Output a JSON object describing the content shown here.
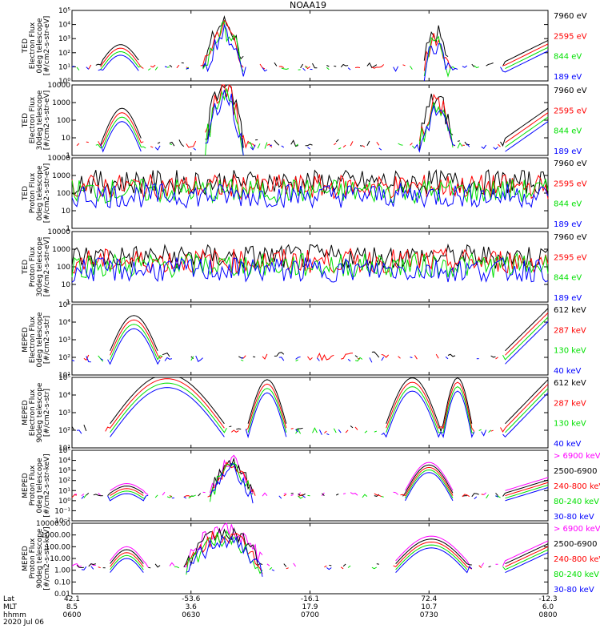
{
  "title": "NOAA19",
  "colors": {
    "black": "#000000",
    "red": "#ff0000",
    "green": "#00e000",
    "blue": "#0000ff",
    "magenta": "#ff00ff"
  },
  "chart_data": [
    {
      "type": "line",
      "panel": "ted-electron-0deg",
      "ylabel": [
        "TED",
        "Electron Flux",
        "0deg telescope",
        "[#/cm2-s-str-eV]"
      ],
      "yticks": [
        "10⁰",
        "10¹",
        "10²",
        "10³",
        "10⁴",
        "10⁵"
      ],
      "ylog": [
        0,
        5
      ],
      "legend": [
        {
          "label": "7960 eV",
          "color": "black"
        },
        {
          "label": "2595 eV",
          "color": "red"
        },
        {
          "label": "844 eV",
          "color": "green"
        },
        {
          "label": "189 eV",
          "color": "blue"
        }
      ],
      "events": [
        {
          "x": [
            6.2,
            14.2
          ],
          "peak": 2.2,
          "kind": "arc"
        },
        {
          "x": [
            28,
            36
          ],
          "peak": 3.7,
          "kind": "spike"
        },
        {
          "x": [
            74,
            79
          ],
          "peak": 3.0,
          "kind": "spike"
        },
        {
          "x": [
            91,
            100
          ],
          "peak": 2.5,
          "kind": "rise"
        }
      ],
      "base": 1.0
    },
    {
      "type": "line",
      "panel": "ted-electron-30deg",
      "ylabel": [
        "TED",
        "Electron Flux",
        "30deg telescope",
        "[#/cm2-s-str-eV]"
      ],
      "yticks": [
        "1",
        "10",
        "100",
        "1000",
        "10000"
      ],
      "ylog": [
        0,
        4
      ],
      "legend": [
        {
          "label": "7960 eV",
          "color": "black"
        },
        {
          "label": "2595 eV",
          "color": "red"
        },
        {
          "label": "844 eV",
          "color": "green"
        },
        {
          "label": "189 eV",
          "color": "blue"
        }
      ],
      "events": [
        {
          "x": [
            6.5,
            14.5
          ],
          "peak": 2.3,
          "kind": "arc"
        },
        {
          "x": [
            28,
            36
          ],
          "peak": 3.8,
          "kind": "spike"
        },
        {
          "x": [
            73,
            80
          ],
          "peak": 2.8,
          "kind": "spike"
        },
        {
          "x": [
            91,
            100
          ],
          "peak": 2.3,
          "kind": "rise"
        }
      ],
      "base": 0.6
    },
    {
      "type": "line",
      "panel": "ted-proton-0deg",
      "ylabel": [
        "TED",
        "Proton Flux",
        "0deg telescope",
        "[#/cm2-s-str-eV]"
      ],
      "yticks": [
        "1",
        "10",
        "100",
        "1000",
        "10000"
      ],
      "ylog": [
        0,
        4
      ],
      "legend": [
        {
          "label": "7960 eV",
          "color": "black"
        },
        {
          "label": "2595 eV",
          "color": "red"
        },
        {
          "label": "844 eV",
          "color": "green"
        },
        {
          "label": "189 eV",
          "color": "blue"
        }
      ],
      "events": [
        {
          "x": [
            0,
            100
          ],
          "peak": 2.3,
          "kind": "band"
        }
      ],
      "base": 2.0
    },
    {
      "type": "line",
      "panel": "ted-proton-30deg",
      "ylabel": [
        "TED",
        "Proton Flux",
        "30deg telescope",
        "[#/cm2-s-str-eV]"
      ],
      "yticks": [
        "1",
        "10",
        "100",
        "1000",
        "10000"
      ],
      "ylog": [
        0,
        4
      ],
      "legend": [
        {
          "label": "7960 eV",
          "color": "black"
        },
        {
          "label": "2595 eV",
          "color": "red"
        },
        {
          "label": "844 eV",
          "color": "green"
        },
        {
          "label": "189 eV",
          "color": "blue"
        }
      ],
      "events": [
        {
          "x": [
            0,
            100
          ],
          "peak": 2.3,
          "kind": "band"
        }
      ],
      "base": 1.8
    },
    {
      "type": "line",
      "panel": "meped-electron-0deg",
      "ylabel": [
        "MEPED",
        "Electron Flux",
        "0deg telescope",
        "[#/cm2-s-str]"
      ],
      "yticks": [
        "10¹",
        "10²",
        "10³",
        "10⁴",
        "10⁵"
      ],
      "ylog": [
        1,
        5
      ],
      "legend": [
        {
          "label": "612 keV",
          "color": "black"
        },
        {
          "label": "287 keV",
          "color": "red"
        },
        {
          "label": "130 keV",
          "color": "green"
        },
        {
          "label": "40 keV",
          "color": "blue"
        }
      ],
      "events": [
        {
          "x": [
            8,
            18
          ],
          "peak": 4.0,
          "kind": "dome"
        },
        {
          "x": [
            91,
            100
          ],
          "peak": 4.4,
          "kind": "rise"
        }
      ],
      "base": 2.0
    },
    {
      "type": "line",
      "panel": "meped-electron-90deg",
      "ylabel": [
        "MEPED",
        "Electron Flux",
        "90deg telescope",
        "[#/cm2-s-str]"
      ],
      "yticks": [
        "10¹",
        "10²",
        "10³",
        "10⁴",
        "10⁵"
      ],
      "ylog": [
        1,
        5
      ],
      "legend": [
        {
          "label": "612 keV",
          "color": "black"
        },
        {
          "label": "287 keV",
          "color": "red"
        },
        {
          "label": "130 keV",
          "color": "green"
        },
        {
          "label": "40 keV",
          "color": "blue"
        }
      ],
      "events": [
        {
          "x": [
            8,
            32
          ],
          "peak": 4.8,
          "kind": "dome"
        },
        {
          "x": [
            37,
            45
          ],
          "peak": 4.5,
          "kind": "dome"
        },
        {
          "x": [
            66,
            77
          ],
          "peak": 4.6,
          "kind": "dome"
        },
        {
          "x": [
            78,
            84
          ],
          "peak": 4.6,
          "kind": "dome"
        },
        {
          "x": [
            91,
            100
          ],
          "peak": 4.5,
          "kind": "rise"
        }
      ],
      "base": 2.0
    },
    {
      "type": "line",
      "panel": "meped-proton-0deg",
      "ylabel": [
        "MEPED",
        "Proton Flux",
        "0deg telescope",
        "[#/cm2-s-str-keV]"
      ],
      "yticks": [
        "10⁻²",
        "10⁻¹",
        "10⁰",
        "10¹",
        "10²",
        "10³",
        "10⁴",
        "10⁵"
      ],
      "ylog": [
        -2,
        5
      ],
      "legend": [
        {
          "label": "> 6900 keV",
          "color": "magenta"
        },
        {
          "label": "2500-6900",
          "color": "black"
        },
        {
          "label": "240-800 keV",
          "color": "red"
        },
        {
          "label": "80-240 keV",
          "color": "green"
        },
        {
          "label": "30-80 keV",
          "color": "blue"
        }
      ],
      "events": [
        {
          "x": [
            8,
            15
          ],
          "peak": 1.2,
          "kind": "dome"
        },
        {
          "x": [
            29,
            38
          ],
          "peak": 3.5,
          "kind": "spike"
        },
        {
          "x": [
            70,
            80
          ],
          "peak": 3.3,
          "kind": "dome"
        },
        {
          "x": [
            91,
            100
          ],
          "peak": 1.8,
          "kind": "rise"
        }
      ],
      "base": 0.5
    },
    {
      "type": "line",
      "panel": "meped-proton-90deg",
      "ylabel": [
        "MEPED",
        "Proton Flux",
        "90deg telescope",
        "[#/cm2-s-str-keV]"
      ],
      "yticks": [
        "0.01",
        "0.10",
        "1.00",
        "10.00",
        "100.00",
        "1000.00",
        "10000.00"
      ],
      "ylog": [
        -2,
        4
      ],
      "legend": [
        {
          "label": "> 6900 keV",
          "color": "magenta"
        },
        {
          "label": "2500-6900",
          "color": "black"
        },
        {
          "label": "240-800 keV",
          "color": "red"
        },
        {
          "label": "80-240 keV",
          "color": "green"
        },
        {
          "label": "30-80 keV",
          "color": "blue"
        }
      ],
      "events": [
        {
          "x": [
            8,
            15
          ],
          "peak": 1.5,
          "kind": "dome"
        },
        {
          "x": [
            24,
            40
          ],
          "peak": 3.0,
          "kind": "spike"
        },
        {
          "x": [
            68,
            83
          ],
          "peak": 2.4,
          "kind": "dome"
        },
        {
          "x": [
            91,
            100
          ],
          "peak": 2.0,
          "kind": "rise"
        }
      ],
      "base": 0.3
    }
  ],
  "x_axis": {
    "row_labels": [
      "Lat",
      "MLT",
      "hhmm",
      "2020 Jul 06"
    ],
    "ticks": [
      {
        "lat": "42.1",
        "mlt": "8.5",
        "time": "0600"
      },
      {
        "lat": "-53.6",
        "mlt": "3.6",
        "time": "0630"
      },
      {
        "lat": "-16.1",
        "mlt": "17.9",
        "time": "0700"
      },
      {
        "lat": "72.4",
        "mlt": "10.7",
        "time": "0730"
      },
      {
        "lat": "-12.3",
        "mlt": "6.0",
        "time": "0800"
      }
    ]
  }
}
